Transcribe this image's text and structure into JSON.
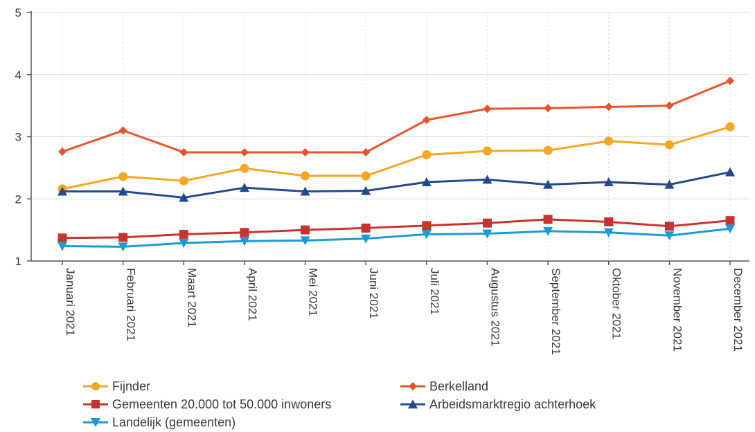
{
  "chart_data": {
    "type": "line",
    "categories": [
      "Januari 2021",
      "Februari 2021",
      "Maart 2021",
      "April 2021",
      "Mei 2021",
      "Juni 2021",
      "Juli 2021",
      "Augustus 2021",
      "September 2021",
      "Oktober 2021",
      "November 2021",
      "December 2021"
    ],
    "ylim": [
      1,
      5
    ],
    "yticks": [
      "1",
      "2",
      "3",
      "4",
      "5"
    ],
    "grid": true,
    "legend_position": "bottom",
    "series": [
      {
        "name": "Fijnder",
        "color": "#f5a623",
        "marker": "circle",
        "values": [
          2.16,
          2.36,
          2.29,
          2.49,
          2.37,
          2.37,
          2.71,
          2.77,
          2.78,
          2.93,
          2.87,
          3.16
        ]
      },
      {
        "name": "Berkelland",
        "color": "#e8532b",
        "marker": "diamond",
        "values": [
          2.76,
          3.1,
          2.75,
          2.75,
          2.75,
          2.75,
          3.27,
          3.45,
          3.46,
          3.48,
          3.5,
          3.9
        ]
      },
      {
        "name": "Gemeenten 20.000 tot 50.000 inwoners",
        "color": "#c8332f",
        "marker": "square",
        "values": [
          1.37,
          1.38,
          1.43,
          1.46,
          1.5,
          1.53,
          1.57,
          1.61,
          1.67,
          1.63,
          1.56,
          1.65
        ]
      },
      {
        "name": "Arbeidsmarktregio achterhoek",
        "color": "#224a8c",
        "marker": "triangle-up",
        "values": [
          2.12,
          2.12,
          2.02,
          2.18,
          2.12,
          2.13,
          2.27,
          2.31,
          2.23,
          2.27,
          2.23,
          2.43
        ]
      },
      {
        "name": "Landelijk (gemeenten)",
        "color": "#1a9ad6",
        "marker": "triangle-down",
        "values": [
          1.24,
          1.23,
          1.29,
          1.32,
          1.33,
          1.36,
          1.43,
          1.44,
          1.48,
          1.46,
          1.41,
          1.52
        ]
      }
    ]
  }
}
